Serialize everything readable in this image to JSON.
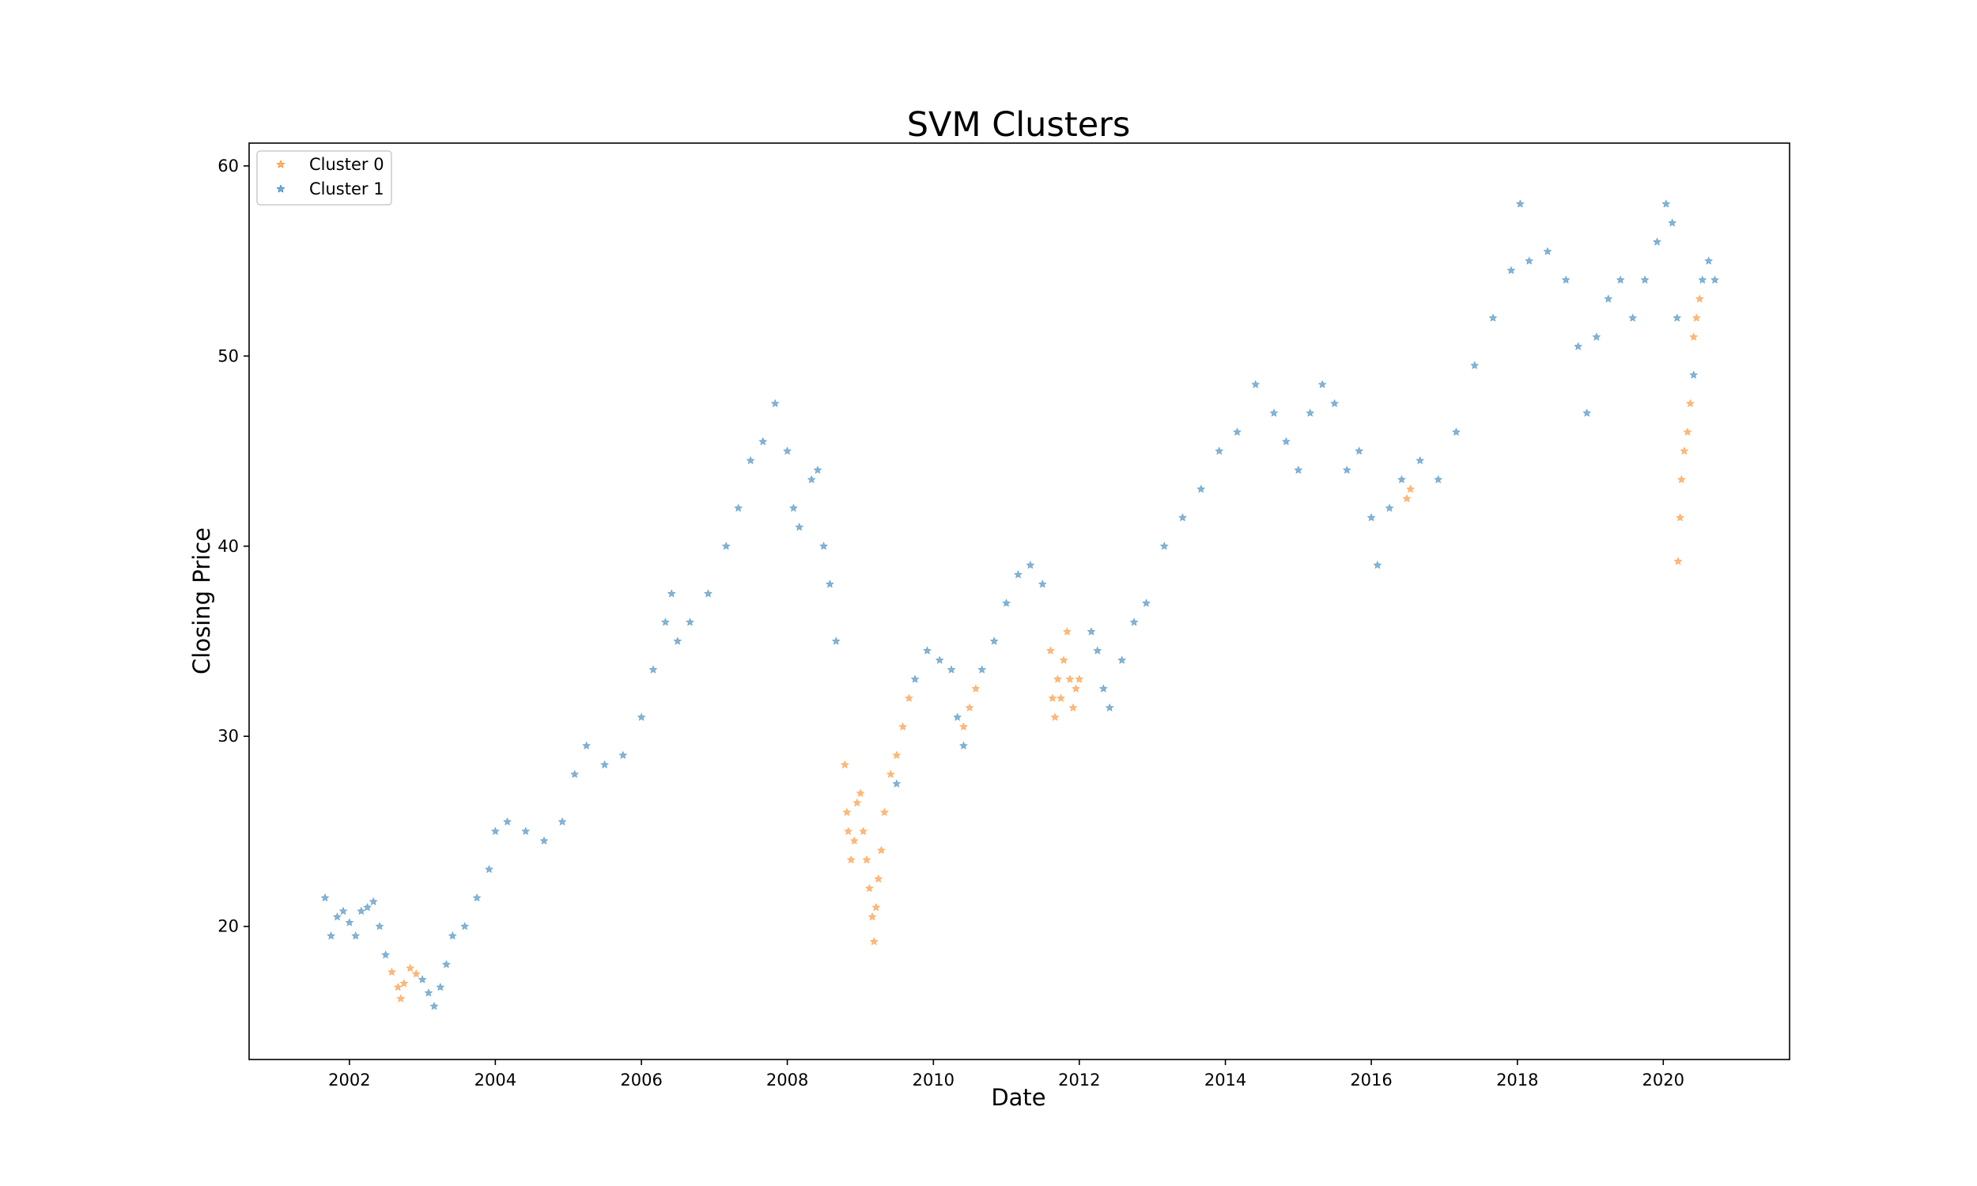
{
  "chart_data": {
    "type": "scatter",
    "title": "SVM Clusters",
    "xlabel": "Date",
    "ylabel": "Closing Price",
    "x_ticks": [
      "2002",
      "2004",
      "2006",
      "2008",
      "2010",
      "2012",
      "2014",
      "2016",
      "2018",
      "2020"
    ],
    "y_ticks": [
      20,
      30,
      40,
      50,
      60
    ],
    "xlim": [
      "2000-08-17",
      "2021-09-24"
    ],
    "ylim": [
      13.0,
      61.2
    ],
    "grid": false,
    "legend_position": "top-left",
    "marker": "star",
    "colors": {
      "cluster_0": "#ff7f0e",
      "cluster_1": "#1f77b4"
    },
    "series": [
      {
        "name": "Cluster 0",
        "color": "#ff7f0e",
        "points": [
          [
            "2002-08-01",
            17.6
          ],
          [
            "2002-09-01",
            16.8
          ],
          [
            "2002-09-15",
            16.2
          ],
          [
            "2002-10-01",
            17.0
          ],
          [
            "2002-11-01",
            17.8
          ],
          [
            "2002-12-01",
            17.5
          ],
          [
            "2008-10-15",
            28.5
          ],
          [
            "2008-10-25",
            26.0
          ],
          [
            "2008-11-01",
            25.0
          ],
          [
            "2008-11-15",
            23.5
          ],
          [
            "2008-12-01",
            24.5
          ],
          [
            "2008-12-15",
            26.5
          ],
          [
            "2009-01-01",
            27.0
          ],
          [
            "2009-01-15",
            25.0
          ],
          [
            "2009-02-01",
            23.5
          ],
          [
            "2009-02-15",
            22.0
          ],
          [
            "2009-03-01",
            20.5
          ],
          [
            "2009-03-10",
            19.2
          ],
          [
            "2009-03-20",
            21.0
          ],
          [
            "2009-04-01",
            22.5
          ],
          [
            "2009-04-15",
            24.0
          ],
          [
            "2009-05-01",
            26.0
          ],
          [
            "2009-06-01",
            28.0
          ],
          [
            "2009-07-01",
            29.0
          ],
          [
            "2009-08-01",
            30.5
          ],
          [
            "2009-09-01",
            32.0
          ],
          [
            "2010-06-01",
            30.5
          ],
          [
            "2010-07-01",
            31.5
          ],
          [
            "2010-08-01",
            32.5
          ],
          [
            "2011-08-10",
            34.5
          ],
          [
            "2011-08-20",
            32.0
          ],
          [
            "2011-09-01",
            31.0
          ],
          [
            "2011-09-15",
            33.0
          ],
          [
            "2011-10-01",
            32.0
          ],
          [
            "2011-10-15",
            34.0
          ],
          [
            "2011-11-01",
            35.5
          ],
          [
            "2011-11-15",
            33.0
          ],
          [
            "2011-12-01",
            31.5
          ],
          [
            "2011-12-15",
            32.5
          ],
          [
            "2012-01-01",
            33.0
          ],
          [
            "2016-06-27",
            42.5
          ],
          [
            "2016-07-15",
            43.0
          ],
          [
            "2020-03-15",
            39.2
          ],
          [
            "2020-03-25",
            41.5
          ],
          [
            "2020-04-01",
            43.5
          ],
          [
            "2020-04-15",
            45.0
          ],
          [
            "2020-05-01",
            46.0
          ],
          [
            "2020-05-15",
            47.5
          ],
          [
            "2020-06-01",
            51.0
          ],
          [
            "2020-06-15",
            52.0
          ],
          [
            "2020-07-01",
            53.0
          ]
        ]
      },
      {
        "name": "Cluster 1",
        "color": "#1f77b4",
        "points": [
          [
            "2001-09-01",
            21.5
          ],
          [
            "2001-10-01",
            19.5
          ],
          [
            "2001-11-01",
            20.5
          ],
          [
            "2001-12-01",
            20.8
          ],
          [
            "2002-01-01",
            20.2
          ],
          [
            "2002-02-01",
            19.5
          ],
          [
            "2002-03-01",
            20.8
          ],
          [
            "2002-04-01",
            21.0
          ],
          [
            "2002-05-01",
            21.3
          ],
          [
            "2002-06-01",
            20.0
          ],
          [
            "2002-07-01",
            18.5
          ],
          [
            "2003-01-01",
            17.2
          ],
          [
            "2003-02-01",
            16.5
          ],
          [
            "2003-03-01",
            15.8
          ],
          [
            "2003-04-01",
            16.8
          ],
          [
            "2003-05-01",
            18.0
          ],
          [
            "2003-06-01",
            19.5
          ],
          [
            "2003-08-01",
            20.0
          ],
          [
            "2003-10-01",
            21.5
          ],
          [
            "2003-12-01",
            23.0
          ],
          [
            "2004-01-01",
            25.0
          ],
          [
            "2004-03-01",
            25.5
          ],
          [
            "2004-06-01",
            25.0
          ],
          [
            "2004-09-01",
            24.5
          ],
          [
            "2004-12-01",
            25.5
          ],
          [
            "2005-02-01",
            28.0
          ],
          [
            "2005-04-01",
            29.5
          ],
          [
            "2005-07-01",
            28.5
          ],
          [
            "2005-10-01",
            29.0
          ],
          [
            "2006-01-01",
            31.0
          ],
          [
            "2006-03-01",
            33.5
          ],
          [
            "2006-05-01",
            36.0
          ],
          [
            "2006-06-01",
            37.5
          ],
          [
            "2006-07-01",
            35.0
          ],
          [
            "2006-09-01",
            36.0
          ],
          [
            "2006-12-01",
            37.5
          ],
          [
            "2007-03-01",
            40.0
          ],
          [
            "2007-05-01",
            42.0
          ],
          [
            "2007-07-01",
            44.5
          ],
          [
            "2007-09-01",
            45.5
          ],
          [
            "2007-11-01",
            47.5
          ],
          [
            "2008-01-01",
            45.0
          ],
          [
            "2008-02-01",
            42.0
          ],
          [
            "2008-03-01",
            41.0
          ],
          [
            "2008-05-01",
            43.5
          ],
          [
            "2008-06-01",
            44.0
          ],
          [
            "2008-07-01",
            40.0
          ],
          [
            "2008-08-01",
            38.0
          ],
          [
            "2008-09-01",
            35.0
          ],
          [
            "2009-07-01",
            27.5
          ],
          [
            "2009-10-01",
            33.0
          ],
          [
            "2009-12-01",
            34.5
          ],
          [
            "2010-02-01",
            34.0
          ],
          [
            "2010-04-01",
            33.5
          ],
          [
            "2010-05-01",
            31.0
          ],
          [
            "2010-06-01",
            29.5
          ],
          [
            "2010-09-01",
            33.5
          ],
          [
            "2010-11-01",
            35.0
          ],
          [
            "2011-01-01",
            37.0
          ],
          [
            "2011-03-01",
            38.5
          ],
          [
            "2011-05-01",
            39.0
          ],
          [
            "2011-07-01",
            38.0
          ],
          [
            "2012-03-01",
            35.5
          ],
          [
            "2012-04-01",
            34.5
          ],
          [
            "2012-05-01",
            32.5
          ],
          [
            "2012-06-01",
            31.5
          ],
          [
            "2012-08-01",
            34.0
          ],
          [
            "2012-10-01",
            36.0
          ],
          [
            "2012-12-01",
            37.0
          ],
          [
            "2013-03-01",
            40.0
          ],
          [
            "2013-06-01",
            41.5
          ],
          [
            "2013-09-01",
            43.0
          ],
          [
            "2013-12-01",
            45.0
          ],
          [
            "2014-03-01",
            46.0
          ],
          [
            "2014-06-01",
            48.5
          ],
          [
            "2014-09-01",
            47.0
          ],
          [
            "2014-11-01",
            45.5
          ],
          [
            "2015-01-01",
            44.0
          ],
          [
            "2015-03-01",
            47.0
          ],
          [
            "2015-05-01",
            48.5
          ],
          [
            "2015-07-01",
            47.5
          ],
          [
            "2015-09-01",
            44.0
          ],
          [
            "2015-11-01",
            45.0
          ],
          [
            "2016-01-01",
            41.5
          ],
          [
            "2016-02-01",
            39.0
          ],
          [
            "2016-04-01",
            42.0
          ],
          [
            "2016-06-01",
            43.5
          ],
          [
            "2016-09-01",
            44.5
          ],
          [
            "2016-12-01",
            43.5
          ],
          [
            "2017-03-01",
            46.0
          ],
          [
            "2017-06-01",
            49.5
          ],
          [
            "2017-09-01",
            52.0
          ],
          [
            "2017-12-01",
            54.5
          ],
          [
            "2018-01-15",
            58.0
          ],
          [
            "2018-03-01",
            55.0
          ],
          [
            "2018-06-01",
            55.5
          ],
          [
            "2018-09-01",
            54.0
          ],
          [
            "2018-11-01",
            50.5
          ],
          [
            "2018-12-15",
            47.0
          ],
          [
            "2019-02-01",
            51.0
          ],
          [
            "2019-04-01",
            53.0
          ],
          [
            "2019-06-01",
            54.0
          ],
          [
            "2019-08-01",
            52.0
          ],
          [
            "2019-10-01",
            54.0
          ],
          [
            "2019-12-01",
            56.0
          ],
          [
            "2020-01-15",
            58.0
          ],
          [
            "2020-02-15",
            57.0
          ],
          [
            "2020-03-10",
            52.0
          ],
          [
            "2020-06-01",
            49.0
          ],
          [
            "2020-07-15",
            54.0
          ],
          [
            "2020-08-15",
            55.0
          ],
          [
            "2020-09-15",
            54.0
          ]
        ]
      }
    ]
  }
}
